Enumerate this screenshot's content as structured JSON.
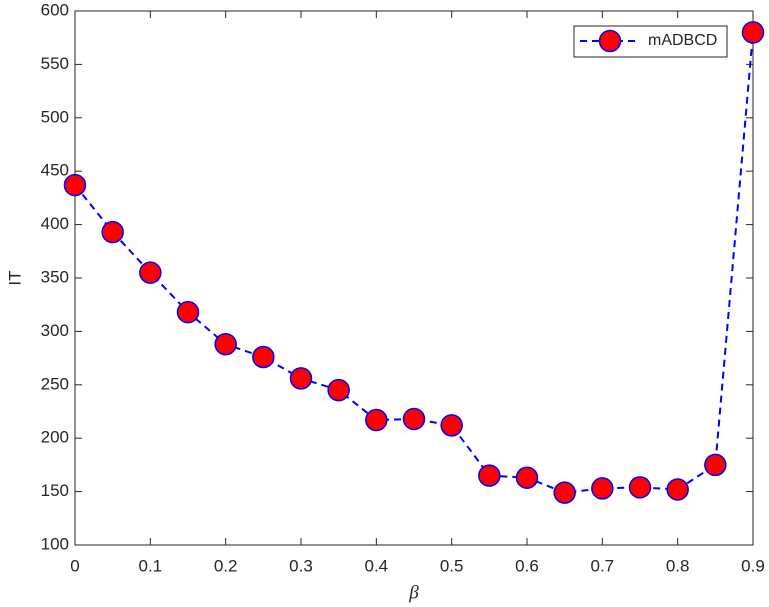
{
  "chart_data": {
    "type": "line",
    "x_label": "β",
    "y_label": "IT",
    "x": [
      0,
      0.05,
      0.1,
      0.15,
      0.2,
      0.25,
      0.3,
      0.35,
      0.4,
      0.45,
      0.5,
      0.55,
      0.6,
      0.65,
      0.7,
      0.75,
      0.8,
      0.85,
      0.9
    ],
    "series": [
      {
        "name": "mADBCD",
        "color": "#0000ff",
        "marker_color": "#ff0000",
        "values": [
          437,
          393,
          355,
          318,
          288,
          276,
          256,
          245,
          217,
          218,
          212,
          165,
          163,
          149,
          153,
          154,
          152,
          175,
          580
        ]
      }
    ],
    "xlim": [
      0,
      0.9
    ],
    "xticks": [
      0,
      0.1,
      0.2,
      0.3,
      0.4,
      0.5,
      0.6,
      0.7,
      0.8,
      0.9
    ],
    "ylim": [
      100,
      600
    ],
    "yticks": [
      100,
      150,
      200,
      250,
      300,
      350,
      400,
      450,
      500,
      550,
      600
    ],
    "grid": false,
    "legend": "northeast"
  }
}
